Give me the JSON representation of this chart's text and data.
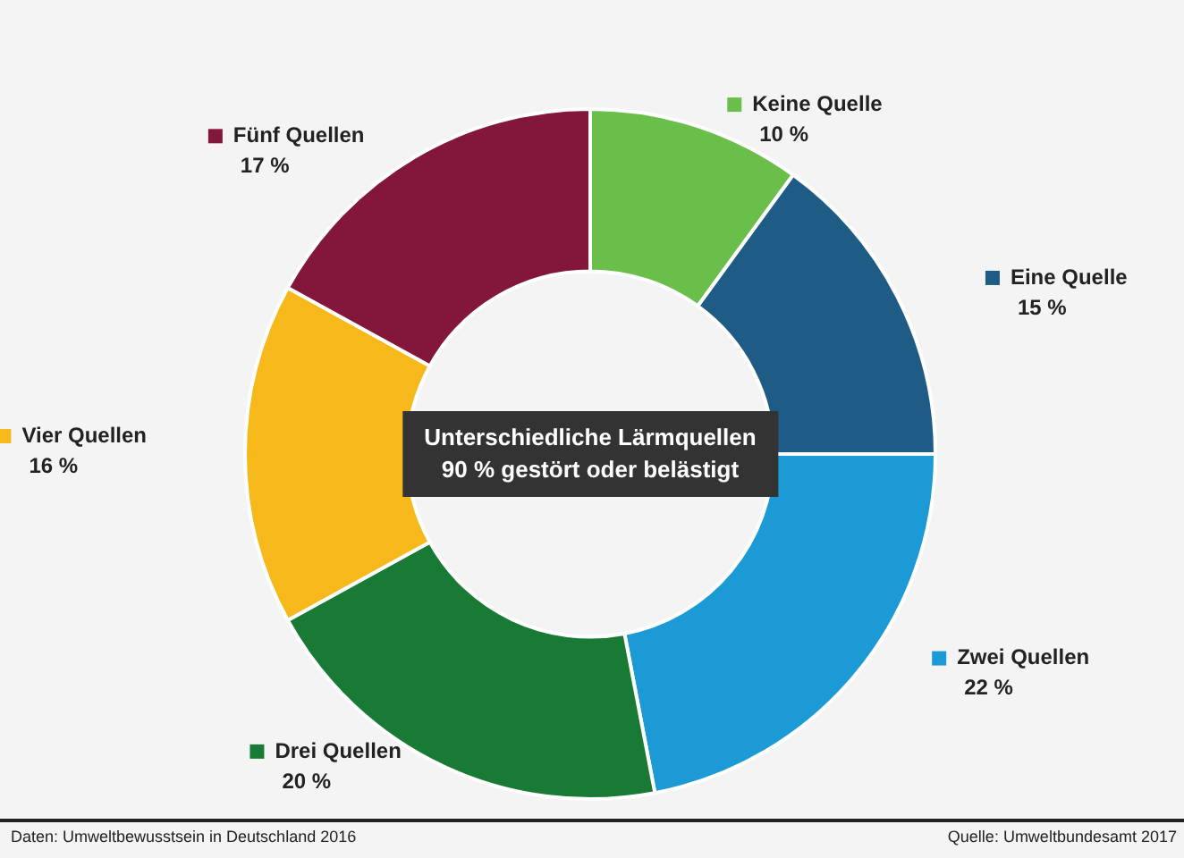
{
  "chart_data": {
    "type": "donut",
    "title": "Unterschiedliche Lärmquellen",
    "subtitle": "90 % gestört oder belästigt",
    "categories": [
      "Keine Quelle",
      "Eine Quelle",
      "Zwei Quellen",
      "Drei Quellen",
      "Vier Quellen",
      "Fünf Quellen"
    ],
    "values": [
      10,
      15,
      22,
      20,
      16,
      17
    ],
    "value_labels": [
      "10 %",
      "15 %",
      "22 %",
      "20 %",
      "16 %",
      "17 %"
    ],
    "colors": [
      "#6abf4b",
      "#1f5c85",
      "#1b9ad6",
      "#197a35",
      "#f7b81c",
      "#82173b"
    ],
    "legend": true,
    "annotations": [
      "Daten: Umweltbewusstsein in Deutschland 2016",
      "Quelle: Umweltbundesamt 2017"
    ]
  }
}
